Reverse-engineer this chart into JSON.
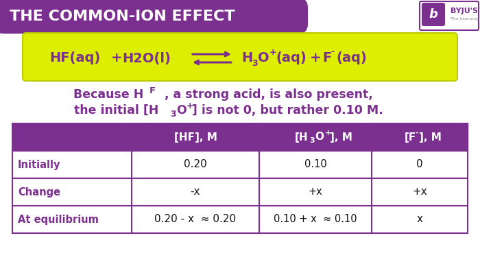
{
  "title": "THE COMMON-ION EFFECT",
  "title_bg": "#7b2f8e",
  "title_color": "#ffffff",
  "equation_bg": "#ddee00",
  "equation_color": "#7b2f8e",
  "desc_color": "#7b2f8e",
  "table_header_bg": "#7b2f8e",
  "table_header_color": "#ffffff",
  "table_row_bg": "#ffffff",
  "table_border_color": "#7b2f8e",
  "table_label_color": "#7b2f8e",
  "table_value_color": "#111111",
  "table_rows": [
    [
      "Initially",
      "0.20",
      "0.10",
      "0"
    ],
    [
      "Change",
      "-x",
      "+x",
      "+x"
    ],
    [
      "At equilibrium",
      "0.20 - x  ≈ 0.20",
      "0.10 + x  ≈ 0.10",
      "x"
    ]
  ],
  "bg_color": "#ffffff",
  "fig_width": 7.0,
  "fig_height": 3.85,
  "dpi": 100
}
